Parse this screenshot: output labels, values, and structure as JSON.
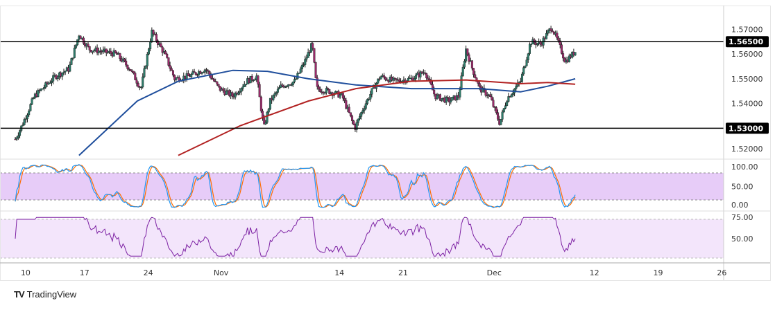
{
  "brand": {
    "logo": "TV",
    "name": "TradingView"
  },
  "chart_data": {
    "type": "candlestick",
    "price_axis": {
      "ticks": [
        "1.57000",
        "1.56000",
        "1.55000",
        "1.54000",
        "1.52000"
      ],
      "range": [
        1.5175,
        1.5785
      ]
    },
    "levels": [
      {
        "price": 1.565,
        "label": "1.56500"
      },
      {
        "price": 1.53,
        "label": "1.53000"
      }
    ],
    "time_axis": {
      "ticks": [
        {
          "day": 0,
          "label": "10"
        },
        {
          "day": 7,
          "label": "17"
        },
        {
          "day": 14,
          "label": "24"
        },
        {
          "day": 22,
          "label": "Nov"
        },
        {
          "day": 35,
          "label": "14"
        },
        {
          "day": 42,
          "label": "21"
        },
        {
          "day": 52,
          "label": "Dec"
        },
        {
          "day": 63,
          "label": "12"
        },
        {
          "day": 70,
          "label": "19"
        },
        {
          "day": 77,
          "label": "26"
        }
      ],
      "range": [
        -0.6,
        77.2
      ]
    },
    "price_path": [
      [
        -0.6,
        1.5256
      ],
      [
        0,
        1.53
      ],
      [
        1.5,
        1.543
      ],
      [
        3.8,
        1.551
      ],
      [
        5.3,
        1.554
      ],
      [
        6.4,
        1.568
      ],
      [
        7.5,
        1.562
      ],
      [
        9,
        1.561
      ],
      [
        10.5,
        1.56
      ],
      [
        12,
        1.554
      ],
      [
        13.2,
        1.546
      ],
      [
        14.4,
        1.569
      ],
      [
        15.8,
        1.56
      ],
      [
        16.9,
        1.55
      ],
      [
        18.4,
        1.551
      ],
      [
        20.3,
        1.554
      ],
      [
        21.8,
        1.546
      ],
      [
        23.3,
        1.543
      ],
      [
        24.8,
        1.549
      ],
      [
        25.9,
        1.551
      ],
      [
        26.7,
        1.53
      ],
      [
        27.4,
        1.541
      ],
      [
        28.6,
        1.547
      ],
      [
        30.1,
        1.549
      ],
      [
        31.2,
        1.557
      ],
      [
        32,
        1.564
      ],
      [
        32.5,
        1.546
      ],
      [
        33.8,
        1.545
      ],
      [
        35.3,
        1.543
      ],
      [
        36.7,
        1.53
      ],
      [
        37.6,
        1.538
      ],
      [
        38.7,
        1.546
      ],
      [
        39.5,
        1.551
      ],
      [
        41,
        1.549
      ],
      [
        42.9,
        1.55
      ],
      [
        44.4,
        1.553
      ],
      [
        45.5,
        1.543
      ],
      [
        47,
        1.541
      ],
      [
        48.1,
        1.543
      ],
      [
        48.9,
        1.562
      ],
      [
        49.6,
        1.554
      ],
      [
        50.4,
        1.546
      ],
      [
        51.5,
        1.543
      ],
      [
        52.6,
        1.532
      ],
      [
        53.4,
        1.542
      ],
      [
        54.9,
        1.549
      ],
      [
        56,
        1.565
      ],
      [
        57.1,
        1.564
      ],
      [
        58.3,
        1.571
      ],
      [
        59,
        1.565
      ],
      [
        59.8,
        1.557
      ],
      [
        60.9,
        1.561
      ]
    ],
    "moving_averages": [
      {
        "name": "MA fast",
        "color": "#1f4e9c",
        "points": [
          [
            6.4,
            1.519
          ],
          [
            12.8,
            1.541
          ],
          [
            17.3,
            1.549
          ],
          [
            23.3,
            1.5534
          ],
          [
            27.1,
            1.553
          ],
          [
            31.6,
            1.55
          ],
          [
            36.8,
            1.5475
          ],
          [
            42.9,
            1.546
          ],
          [
            50.4,
            1.546
          ],
          [
            54.9,
            1.5447
          ],
          [
            57.9,
            1.547
          ],
          [
            60.9,
            1.55
          ]
        ]
      },
      {
        "name": "MA slow",
        "color": "#b22222",
        "points": [
          [
            17.3,
            1.519
          ],
          [
            24.1,
            1.531
          ],
          [
            31.6,
            1.541
          ],
          [
            36.8,
            1.546
          ],
          [
            42.9,
            1.549
          ],
          [
            48.9,
            1.5495
          ],
          [
            54.9,
            1.548
          ],
          [
            57.9,
            1.5485
          ],
          [
            60.9,
            1.5478
          ]
        ]
      }
    ],
    "stochastic": {
      "axis": [
        "100.00",
        "50.00",
        "0.00"
      ],
      "band": [
        20,
        80
      ],
      "colors": {
        "k": "#2196f3",
        "d": "#ff6d00"
      }
    },
    "rsi": {
      "axis": [
        "75.00",
        "50.00"
      ],
      "band": [
        30,
        70
      ],
      "color": "#7b1fa2"
    },
    "colors": {
      "up": "#089981",
      "down": "#9c2a6b",
      "candle": "#1a1a1a"
    }
  }
}
